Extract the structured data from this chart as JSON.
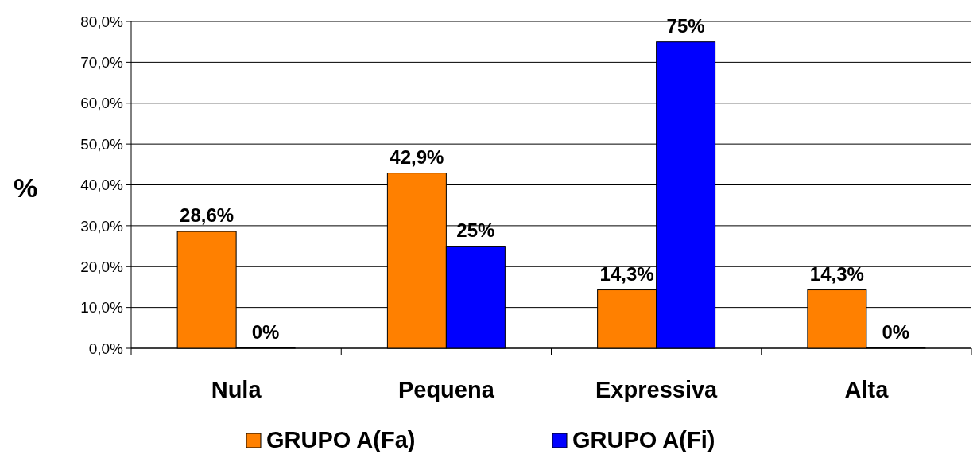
{
  "chart_data": {
    "type": "bar",
    "ylabel": "%",
    "categories": [
      "Nula",
      "Pequena",
      "Expressiva",
      "Alta"
    ],
    "series": [
      {
        "name": "GRUPO A(Fa)",
        "color": "#ff8000",
        "values": [
          28.6,
          42.9,
          14.3,
          14.3
        ],
        "value_labels": [
          "28,6%",
          "42,9%",
          "14,3%",
          "14,3%"
        ]
      },
      {
        "name": "GRUPO A(Fi)",
        "color": "#0000ff",
        "values": [
          0,
          25,
          75,
          0
        ],
        "value_labels": [
          "0%",
          "25%",
          "75%",
          "0%"
        ]
      }
    ],
    "ylim": [
      0,
      80
    ],
    "yticks": [
      {
        "value": 0,
        "label": "0,0%"
      },
      {
        "value": 10,
        "label": "10,0%"
      },
      {
        "value": 20,
        "label": "20,0%"
      },
      {
        "value": 30,
        "label": "30,0%"
      },
      {
        "value": 40,
        "label": "40,0%"
      },
      {
        "value": 50,
        "label": "50,0%"
      },
      {
        "value": 60,
        "label": "60,0%"
      },
      {
        "value": 70,
        "label": "70,0%"
      },
      {
        "value": 80,
        "label": "80,0%"
      }
    ],
    "grid": "y",
    "legend": "bottom"
  }
}
